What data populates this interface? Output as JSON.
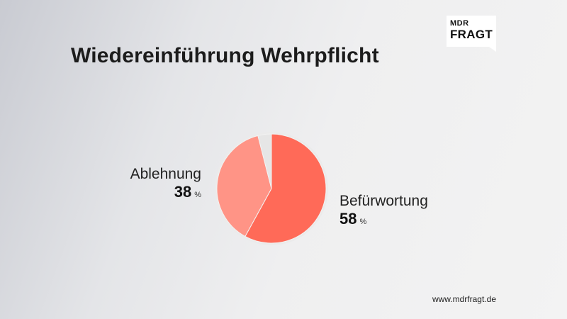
{
  "title": "Wiedereinführung Wehrpflicht",
  "logo": {
    "line1": "MDR",
    "line2": "FRAGT"
  },
  "footer": "www.mdrfragt.de",
  "colors": {
    "befuerwortung": "#ff6a58",
    "ablehnung": "#ff9486",
    "rest": "#e6e6e6",
    "ring": "#ebebeb"
  },
  "chart_data": {
    "type": "pie",
    "title": "Wiedereinführung Wehrpflicht",
    "start": "top, clockwise",
    "slices": [
      {
        "label": "Befürwortung",
        "value": 58,
        "value_text": "58",
        "unit": "%",
        "color": "#ff6a58"
      },
      {
        "label": "Ablehnung",
        "value": 38,
        "value_text": "38",
        "unit": "%",
        "color": "#ff9486"
      },
      {
        "label": "",
        "value": 4,
        "color": "#e6e6e6"
      }
    ]
  }
}
